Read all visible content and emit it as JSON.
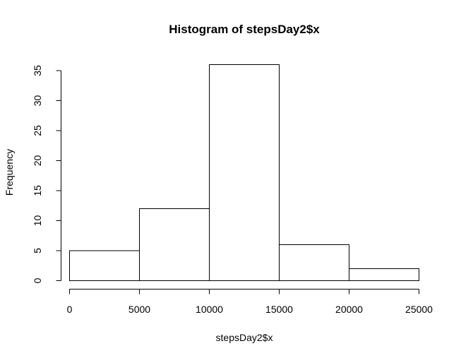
{
  "chart_data": {
    "type": "bar",
    "title": "Histogram of stepsDay2$x",
    "xlabel": "stepsDay2$x",
    "ylabel": "Frequency",
    "bins": [
      {
        "start": 0,
        "end": 5000,
        "count": 5
      },
      {
        "start": 5000,
        "end": 10000,
        "count": 12
      },
      {
        "start": 10000,
        "end": 15000,
        "count": 36
      },
      {
        "start": 15000,
        "end": 20000,
        "count": 6
      },
      {
        "start": 20000,
        "end": 25000,
        "count": 2
      }
    ],
    "xlim": [
      0,
      25000
    ],
    "ylim": [
      0,
      36
    ],
    "x_ticks": [
      0,
      5000,
      10000,
      15000,
      20000,
      25000
    ],
    "y_ticks": [
      0,
      5,
      10,
      15,
      20,
      25,
      30,
      35
    ],
    "grid": false,
    "legend": "none",
    "bar_fill": "#ffffff",
    "bar_stroke": "#000000"
  }
}
